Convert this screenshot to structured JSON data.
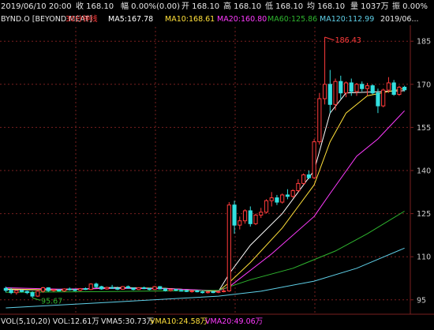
{
  "header": {
    "datetime": "2019/06/10 20:00",
    "close": "收 168.10",
    "change": "幅 0.00%(0.00)",
    "open": "开 168.10",
    "high": "高 168.10",
    "low": "低 168.10",
    "avg": "均 168.10",
    "volume": "量 1037万",
    "amplitude": "振 0.00%"
  },
  "ma_legend": {
    "symbol": "BYND.O [BEYOND MEAT]",
    "period": "30分钟线",
    "ma5": "MA5:167.78",
    "ma10": "MA10:168.61",
    "ma20": "MA20:160.80",
    "ma60": "MA60:125.86",
    "ma120": "MA120:112.99",
    "date_right": "2019/06..."
  },
  "volume_legend": {
    "vol": "VOL(5,10,20) VOL:12.61万",
    "vma5": "VMA5:30.73万",
    "vma10": "VMA10:24.58万",
    "vma20": "VMA20:49.06万"
  },
  "colors": {
    "up": "#ff3b3b",
    "down": "#33e0e0",
    "ma5": "#ffffff",
    "ma10": "#ffe03a",
    "ma20": "#ff3bff",
    "ma60": "#2fb52f",
    "ma120": "#5fd0e8",
    "grid": "#7a1f1f"
  },
  "chart_data": {
    "type": "candlestick",
    "interval": "30分钟线",
    "ylim": [
      90,
      190
    ],
    "yticks": [
      95,
      110,
      125,
      140,
      155,
      170,
      185
    ],
    "annotations": [
      {
        "label": "186.43",
        "value": 186.43
      },
      {
        "label": "95.67",
        "value": 95.67
      }
    ],
    "candles": [
      [
        99.0,
        99.6,
        97.6,
        98.3
      ],
      [
        98.3,
        99.2,
        97.0,
        97.5
      ],
      [
        97.5,
        98.5,
        96.8,
        98.2
      ],
      [
        98.2,
        98.6,
        97.6,
        97.9
      ],
      [
        97.9,
        98.2,
        97.0,
        97.5
      ],
      [
        97.5,
        98.0,
        95.67,
        96.3
      ],
      [
        96.3,
        98.5,
        96.0,
        98.0
      ],
      [
        98.0,
        99.5,
        97.5,
        99.2
      ],
      [
        99.2,
        99.4,
        97.8,
        98.2
      ],
      [
        98.2,
        98.8,
        97.8,
        98.5
      ],
      [
        98.5,
        98.7,
        97.9,
        98.1
      ],
      [
        98.1,
        99.0,
        97.8,
        98.8
      ],
      [
        98.8,
        99.3,
        98.2,
        98.5
      ],
      [
        98.5,
        98.9,
        98.0,
        98.3
      ],
      [
        98.3,
        99.1,
        98.0,
        98.9
      ],
      [
        98.9,
        99.3,
        98.4,
        98.6
      ],
      [
        98.6,
        100.8,
        98.4,
        100.5
      ],
      [
        100.5,
        101.0,
        99.2,
        99.6
      ],
      [
        99.6,
        99.9,
        98.5,
        98.8
      ],
      [
        98.8,
        99.6,
        98.5,
        99.3
      ],
      [
        99.3,
        100.2,
        98.8,
        99.0
      ],
      [
        99.0,
        99.6,
        98.4,
        98.7
      ],
      [
        98.7,
        99.8,
        98.5,
        99.6
      ],
      [
        99.6,
        100.0,
        98.9,
        99.1
      ],
      [
        99.1,
        99.3,
        98.3,
        98.6
      ],
      [
        98.6,
        99.4,
        98.4,
        99.2
      ],
      [
        99.2,
        99.6,
        98.7,
        98.9
      ],
      [
        98.9,
        99.2,
        98.3,
        98.6
      ],
      [
        98.6,
        99.9,
        98.4,
        99.6
      ],
      [
        99.6,
        99.8,
        98.6,
        98.8
      ],
      [
        98.8,
        99.1,
        97.9,
        98.2
      ],
      [
        98.2,
        98.9,
        97.9,
        98.6
      ],
      [
        98.6,
        98.9,
        98.0,
        98.3
      ],
      [
        98.3,
        98.8,
        97.9,
        98.2
      ],
      [
        98.2,
        98.6,
        97.7,
        97.9
      ],
      [
        97.9,
        98.4,
        97.5,
        98.1
      ],
      [
        98.1,
        98.5,
        97.6,
        97.8
      ],
      [
        97.8,
        98.1,
        97.2,
        97.5
      ],
      [
        97.5,
        98.0,
        97.2,
        97.8
      ],
      [
        97.8,
        98.2,
        97.3,
        97.6
      ],
      [
        97.6,
        98.1,
        97.3,
        97.9
      ],
      [
        97.9,
        99.0,
        97.6,
        98.1
      ],
      [
        98.1,
        129.0,
        97.8,
        128.0
      ],
      [
        128.0,
        129.5,
        118.0,
        121.0
      ],
      [
        121.0,
        124.0,
        119.5,
        122.5
      ],
      [
        122.5,
        126.5,
        121.5,
        126.0
      ],
      [
        126.0,
        127.5,
        120.5,
        121.5
      ],
      [
        121.5,
        125.0,
        121.0,
        124.5
      ],
      [
        124.5,
        127.0,
        123.5,
        125.5
      ],
      [
        125.5,
        130.0,
        125.0,
        129.5
      ],
      [
        129.5,
        132.5,
        127.5,
        130.5
      ],
      [
        130.5,
        131.5,
        128.0,
        129.0
      ],
      [
        129.0,
        132.0,
        128.5,
        131.5
      ],
      [
        131.5,
        133.5,
        130.0,
        131.0
      ],
      [
        131.0,
        133.5,
        130.5,
        133.0
      ],
      [
        133.0,
        137.0,
        132.5,
        135.5
      ],
      [
        135.5,
        139.0,
        135.0,
        138.5
      ],
      [
        138.5,
        140.0,
        137.0,
        137.5
      ],
      [
        137.5,
        151.0,
        137.0,
        150.0
      ],
      [
        150.0,
        167.0,
        149.0,
        165.0
      ],
      [
        165.0,
        186.43,
        163.0,
        170.0
      ],
      [
        170.0,
        175.0,
        160.0,
        163.0
      ],
      [
        163.0,
        172.0,
        161.0,
        171.0
      ],
      [
        171.0,
        173.0,
        165.0,
        167.0
      ],
      [
        167.0,
        171.0,
        165.5,
        170.5
      ],
      [
        170.5,
        172.0,
        166.0,
        167.5
      ],
      [
        167.5,
        170.5,
        166.0,
        170.0
      ],
      [
        170.0,
        171.0,
        167.5,
        168.5
      ],
      [
        168.5,
        170.5,
        166.0,
        169.5
      ],
      [
        169.5,
        170.0,
        166.5,
        167.0
      ],
      [
        167.0,
        168.5,
        160.0,
        162.5
      ],
      [
        162.5,
        168.5,
        162.0,
        168.0
      ],
      [
        168.0,
        172.5,
        167.0,
        170.5
      ],
      [
        170.5,
        171.5,
        166.0,
        166.5
      ],
      [
        166.5,
        169.5,
        166.0,
        169.0
      ],
      [
        169.0,
        169.5,
        167.5,
        168.1
      ]
    ],
    "ma_lines": [
      {
        "name": "MA5",
        "points": [
          [
            0,
            98.6
          ],
          [
            10,
            98.4
          ],
          [
            20,
            99.3
          ],
          [
            30,
            99.0
          ],
          [
            40,
            97.9
          ],
          [
            42,
            104.0
          ],
          [
            46,
            114.0
          ],
          [
            52,
            125.0
          ],
          [
            58,
            140.0
          ],
          [
            61,
            160.0
          ],
          [
            64,
            167.0
          ],
          [
            75,
            167.78
          ]
        ]
      },
      {
        "name": "MA10",
        "points": [
          [
            0,
            98.8
          ],
          [
            10,
            98.4
          ],
          [
            20,
            99.1
          ],
          [
            30,
            99.0
          ],
          [
            40,
            98.0
          ],
          [
            42,
            101.0
          ],
          [
            46,
            108.0
          ],
          [
            52,
            120.0
          ],
          [
            58,
            135.0
          ],
          [
            61,
            150.0
          ],
          [
            64,
            160.0
          ],
          [
            68,
            166.0
          ],
          [
            75,
            168.61
          ]
        ]
      },
      {
        "name": "MA20",
        "points": [
          [
            0,
            99.2
          ],
          [
            10,
            98.7
          ],
          [
            20,
            99.0
          ],
          [
            30,
            98.9
          ],
          [
            40,
            98.2
          ],
          [
            42,
            99.5
          ],
          [
            50,
            111.0
          ],
          [
            58,
            124.0
          ],
          [
            61,
            132.0
          ],
          [
            66,
            145.0
          ],
          [
            70,
            151.0
          ],
          [
            75,
            160.8
          ]
        ]
      },
      {
        "name": "MA60",
        "points": [
          [
            0,
            97.6
          ],
          [
            20,
            97.9
          ],
          [
            40,
            98.3
          ],
          [
            46,
            102.0
          ],
          [
            54,
            106.0
          ],
          [
            62,
            112.0
          ],
          [
            68,
            118.0
          ],
          [
            75,
            125.86
          ]
        ]
      },
      {
        "name": "MA120",
        "points": [
          [
            0,
            92.2
          ],
          [
            20,
            94.2
          ],
          [
            40,
            96.3
          ],
          [
            48,
            98.0
          ],
          [
            58,
            101.5
          ],
          [
            66,
            106.0
          ],
          [
            75,
            112.99
          ]
        ]
      }
    ]
  }
}
